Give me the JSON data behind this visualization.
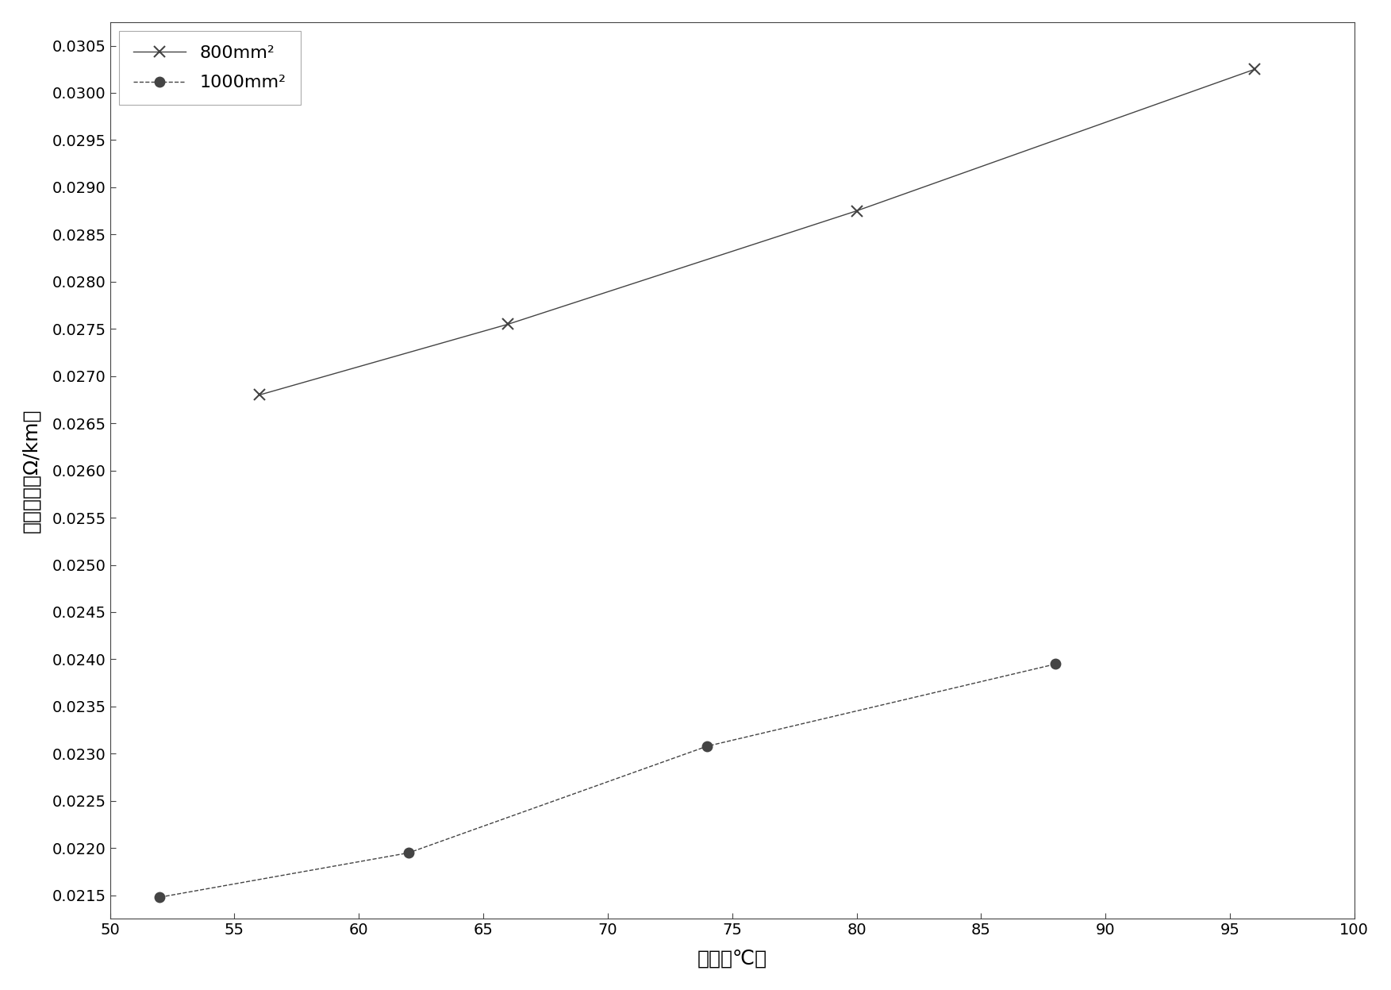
{
  "series1": {
    "label": "800mm²",
    "x": [
      56,
      66,
      80,
      96
    ],
    "y": [
      0.0268,
      0.02755,
      0.02875,
      0.03025
    ],
    "linestyle": "-",
    "marker": "x",
    "color": "#444444",
    "linewidth": 1.0,
    "markersize": 10,
    "markeredgewidth": 1.5
  },
  "series2": {
    "label": "1000mm²",
    "x": [
      52,
      62,
      74,
      88
    ],
    "y": [
      0.02148,
      0.02195,
      0.02308,
      0.02395
    ],
    "linestyle": "--",
    "marker": "o",
    "color": "#444444",
    "linewidth": 1.0,
    "markersize": 9,
    "markeredgewidth": 1.0
  },
  "xlabel": "温度（℃）",
  "ylabel": "交流电阵（Ω/km）",
  "xlim": [
    50,
    100
  ],
  "ylim": [
    0.02125,
    0.03075
  ],
  "xticks": [
    50,
    55,
    60,
    65,
    70,
    75,
    80,
    85,
    90,
    95,
    100
  ],
  "yticks": [
    0.0215,
    0.022,
    0.0225,
    0.023,
    0.0235,
    0.024,
    0.0245,
    0.025,
    0.0255,
    0.026,
    0.0265,
    0.027,
    0.0275,
    0.028,
    0.0285,
    0.029,
    0.0295,
    0.03,
    0.0305
  ],
  "bg_color": "#ffffff",
  "fig_color": "#ffffff",
  "legend_labels": [
    "800mm²",
    "1000mm²"
  ]
}
